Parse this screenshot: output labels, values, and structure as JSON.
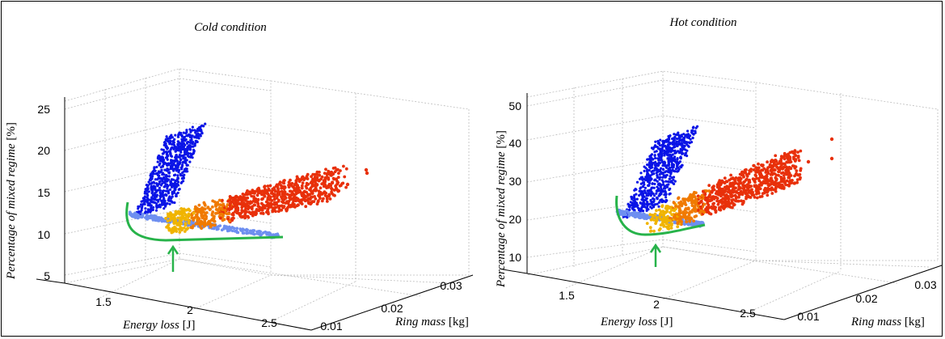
{
  "chart_data": [
    {
      "type": "scatter",
      "title": "Cold condition",
      "zlabel": "Percentage of mixed regime",
      "zunit": "[%]",
      "xlabel": "Energy loss",
      "xunit": "[J]",
      "ylabel": "Ring mass",
      "yunit": "[kg]",
      "ztick_labels": [
        "5",
        "10",
        "15",
        "20",
        "25"
      ],
      "xtick_labels": [
        "1.5",
        "2",
        "2.5"
      ],
      "ytick_labels": [
        "0.01",
        "0.02",
        "0.03"
      ],
      "zlim": [
        4,
        26
      ],
      "xlim": [
        1.2,
        2.8
      ],
      "ylim": [
        0.005,
        0.035
      ],
      "grid": true,
      "marker_colors": [
        "#0a14e6",
        "#6e8ff0",
        "#f0b400",
        "#f07a00",
        "#e8300a"
      ],
      "pareto_color": "#27b34a",
      "arrow_color": "#27b34a"
    },
    {
      "type": "scatter",
      "title": "Hot condition",
      "zlabel": "Percentage of mixed regime",
      "zunit": "[%]",
      "xlabel": "Energy loss",
      "xunit": "[J]",
      "ylabel": "Ring mass",
      "yunit": "[kg]",
      "ztick_labels": [
        "10",
        "20",
        "30",
        "40",
        "50"
      ],
      "xtick_labels": [
        "1.5",
        "2",
        "2.5"
      ],
      "ytick_labels": [
        "0.01",
        "0.02",
        "0.03"
      ],
      "zlim": [
        5,
        52
      ],
      "xlim": [
        1.2,
        2.8
      ],
      "ylim": [
        0.005,
        0.035
      ],
      "grid": true,
      "marker_colors": [
        "#0a14e6",
        "#6e8ff0",
        "#f0b400",
        "#f07a00",
        "#e8300a"
      ],
      "pareto_color": "#27b34a",
      "arrow_color": "#27b34a"
    }
  ]
}
